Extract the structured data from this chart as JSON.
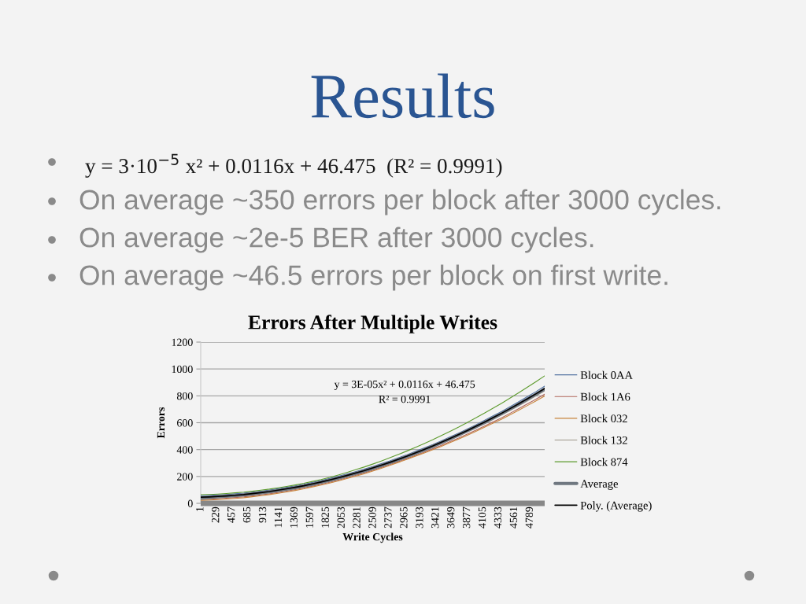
{
  "chart_data": {
    "type": "line",
    "title": "Errors After Multiple Writes",
    "xlabel": "Write Cycles",
    "ylabel": "Errors",
    "annotations": [
      "Results",
      "y = 3·10$^{−5}$ x² + 0.0116x + 46.475  (R² = 0.9991)",
      "On average ~350 errors per block after 3000 cycles.",
      "On average ~2e-5 BER after 3000 cycles.",
      "On average ~46.5 errors per block on first write.",
      "y = 3E-05x² + 0.0116x + 46.475",
      "R² = 0.9991"
    ],
    "x": [
      1,
      125,
      250,
      375,
      500,
      625,
      750,
      875,
      1000,
      1125,
      1250,
      1375,
      1500,
      1625,
      1750,
      1875,
      2000,
      2125,
      2250,
      2375,
      2500,
      2625,
      2750,
      2875,
      3000,
      3125,
      3250,
      3375,
      3500,
      3625,
      3750,
      3875,
      4000,
      4125,
      4250,
      4375,
      4500,
      4625,
      4750,
      4875,
      5000
    ],
    "series": [
      {
        "name": "Block 0AA",
        "color": "#4f6fa0",
        "values": [
          57,
          59,
          62,
          66,
          71,
          76,
          83,
          91,
          99,
          109,
          119,
          130,
          142,
          156,
          170,
          185,
          201,
          218,
          236,
          254,
          274,
          295,
          316,
          339,
          362,
          387,
          412,
          438,
          466,
          494,
          523,
          553,
          584,
          617,
          651,
          684,
          720,
          757,
          795,
          832,
          872
        ]
      },
      {
        "name": "Block 1A6",
        "color": "#b0655a",
        "values": [
          29,
          31,
          34,
          38,
          43,
          48,
          55,
          63,
          71,
          81,
          91,
          102,
          114,
          128,
          142,
          157,
          173,
          190,
          208,
          226,
          246,
          267,
          288,
          311,
          333,
          357,
          381,
          406,
          432,
          459,
          486,
          515,
          544,
          575,
          606,
          637,
          671,
          705,
          740,
          775,
          812
        ]
      },
      {
        "name": "Block 032",
        "color": "#c8843c",
        "values": [
          23,
          25,
          28,
          32,
          37,
          42,
          49,
          57,
          65,
          75,
          85,
          96,
          108,
          122,
          136,
          151,
          167,
          184,
          202,
          220,
          240,
          261,
          282,
          305,
          328,
          352,
          375,
          399,
          425,
          452,
          479,
          507,
          536,
          566,
          597,
          627,
          660,
          694,
          728,
          763,
          799
        ]
      },
      {
        "name": "Block 132",
        "color": "#9d9588",
        "values": [
          35,
          37,
          40,
          44,
          49,
          54,
          61,
          69,
          77,
          87,
          97,
          108,
          120,
          134,
          148,
          163,
          179,
          196,
          214,
          232,
          252,
          273,
          294,
          317,
          340,
          365,
          390,
          416,
          444,
          472,
          501,
          531,
          562,
          593,
          625,
          658,
          692,
          727,
          763,
          800,
          838
        ]
      },
      {
        "name": "Block 874",
        "color": "#5e9b2e",
        "values": [
          64,
          66,
          69,
          73,
          78,
          83,
          90,
          98,
          106,
          116,
          126,
          137,
          149,
          163,
          177,
          193,
          211,
          230,
          250,
          270,
          292,
          315,
          339,
          364,
          390,
          417,
          445,
          474,
          505,
          536,
          568,
          602,
          636,
          672,
          708,
          745,
          784,
          824,
          865,
          906,
          949
        ]
      },
      {
        "name": "Average",
        "color": "#6f7780",
        "values": [
          38,
          44,
          50,
          54,
          58,
          64,
          71,
          78,
          87,
          96,
          106,
          117,
          129,
          142,
          157,
          172,
          188,
          205,
          223,
          241,
          261,
          282,
          303,
          326,
          350,
          374,
          399,
          425,
          452,
          480,
          509,
          540,
          570,
          602,
          635,
          668,
          703,
          739,
          776,
          813,
          850
        ]
      },
      {
        "name": "Poly. (Average)",
        "color": "#000000",
        "type": "line",
        "x": [
          1,
          125,
          250,
          375,
          500,
          625,
          750,
          875,
          1000,
          1125,
          1250,
          1375,
          1500,
          1625,
          1750,
          1875,
          2000,
          2125,
          2250,
          2375,
          2500,
          2625,
          2750,
          2875,
          3000,
          3125,
          3250,
          3375,
          3500,
          3625,
          3750,
          3875,
          4000,
          4125,
          4250,
          4375,
          4500,
          4625,
          4750,
          4875,
          5000
        ],
        "values": [
          46,
          48,
          51,
          55,
          60,
          65,
          72,
          80,
          88,
          98,
          108,
          119,
          131,
          145,
          159,
          174,
          190,
          207,
          225,
          243,
          263,
          284,
          305,
          328,
          351,
          376,
          401,
          427,
          455,
          483,
          512,
          542,
          573,
          605,
          638,
          671,
          706,
          742,
          779,
          816,
          855
        ]
      }
    ],
    "xlim": [
      1,
      5000
    ],
    "xticks": [
      1,
      229,
      457,
      685,
      913,
      1141,
      1369,
      1597,
      1825,
      2053,
      2281,
      2509,
      2737,
      2965,
      3193,
      3421,
      3649,
      3877,
      4105,
      4333,
      4561,
      4789
    ],
    "ylim": [
      0,
      1200
    ],
    "yticks": [
      0,
      200,
      400,
      600,
      800,
      1000,
      1200
    ],
    "grid": "y",
    "legend": "right"
  }
}
